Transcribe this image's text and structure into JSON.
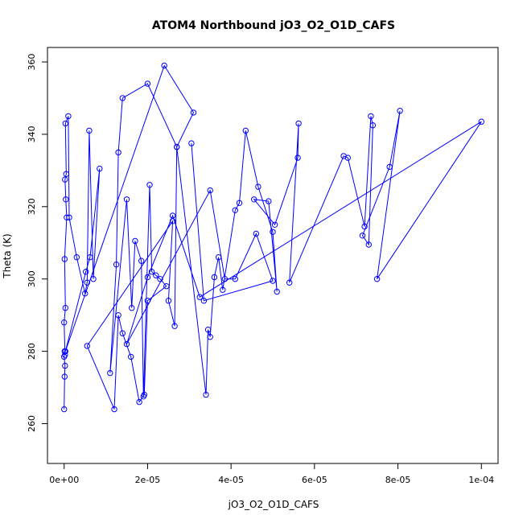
{
  "chart_data": {
    "type": "line",
    "title": "ATOM4 Northbound jO3_O2_O1D_CAFS",
    "xlabel": "jO3_O2_O1D_CAFS",
    "ylabel": "Theta (K)",
    "xlim": [
      -4e-06,
      0.000104
    ],
    "ylim": [
      249,
      364
    ],
    "xticks": [
      0,
      2e-05,
      4e-05,
      6e-05,
      8e-05,
      0.0001
    ],
    "xtick_labels": [
      "0e+00",
      "2e-05",
      "4e-05",
      "6e-05",
      "8e-05",
      "1e-04"
    ],
    "yticks": [
      260,
      280,
      300,
      320,
      340,
      360
    ],
    "ytick_labels": [
      "260",
      "280",
      "300",
      "320",
      "340",
      "360"
    ],
    "grid": false,
    "series_color": "#0000ff",
    "markers": "open-circle",
    "x": [
      0.0,
      1e-07,
      2e-07,
      0.0,
      1e-07,
      2e-07,
      0.0,
      3e-07,
      1e-07,
      6e-07,
      4e-07,
      2e-07,
      5e-07,
      3e-07,
      1e-06,
      1.2e-06,
      3e-06,
      5e-06,
      5.5e-06,
      6e-06,
      7e-06,
      8.5e-06,
      6.2e-06,
      5.2e-06,
      3e-07,
      2.4e-05,
      3.1e-05,
      2.7e-05,
      2e-05,
      1.4e-05,
      1.3e-05,
      1.25e-05,
      1.1e-05,
      1.5e-05,
      1.62e-05,
      1.7e-05,
      1.85e-05,
      1.9e-05,
      2.05e-05,
      2.1e-05,
      2.2e-05,
      2.3e-05,
      2.45e-05,
      2e-05,
      1.92e-05,
      1.8e-05,
      1.6e-05,
      1.4e-05,
      1.3e-05,
      1.2e-05,
      5.5e-06,
      2.6e-05,
      2.5e-05,
      2.65e-05,
      2.7e-05,
      3.4e-05,
      3.45e-05,
      3.5e-05,
      3.6e-05,
      3.7e-05,
      3.8e-05,
      4.1e-05,
      4.2e-05,
      4.35e-05,
      4.65e-05,
      5e-05,
      5.1e-05,
      4.9e-05,
      4.55e-05,
      5.05e-05,
      5.6e-05,
      5.62e-05,
      5.4e-05,
      6.7e-05,
      6.8e-05,
      7.2e-05,
      7.35e-05,
      7.4e-05,
      7.3e-05,
      7.15e-05,
      7.8e-05,
      8.05e-05,
      7.5e-05,
      0.0001,
      3.25e-05,
      2.6e-05,
      2e-05,
      1.5e-05,
      3.5e-05,
      3.85e-05,
      4.1e-05,
      4.6e-05,
      5e-05,
      3.35e-05,
      3.05e-05
    ],
    "y": [
      264,
      273,
      276,
      278.5,
      280,
      279,
      288,
      292,
      305.5,
      317,
      322,
      327.5,
      329,
      343,
      345,
      317,
      306,
      296,
      299,
      341,
      300,
      330.5,
      306,
      302,
      280,
      359,
      346,
      336.5,
      354,
      350,
      335,
      304,
      274,
      322,
      292,
      310.5,
      305,
      267.5,
      326,
      302,
      301,
      300,
      298,
      294,
      268,
      266,
      278.5,
      285,
      290,
      264,
      281.5,
      316,
      294,
      287,
      336.5,
      268,
      286,
      284,
      300.5,
      306,
      297,
      319,
      321,
      341,
      325.5,
      313,
      296.5,
      321.5,
      322,
      315,
      333.5,
      343,
      299,
      334,
      333.5,
      314.5,
      345,
      342.5,
      309.5,
      312,
      331,
      346.5,
      300,
      343.5,
      295,
      317.5,
      300.5,
      282,
      324.5,
      300,
      300,
      312.5,
      299.5,
      294,
      337.5
    ]
  }
}
